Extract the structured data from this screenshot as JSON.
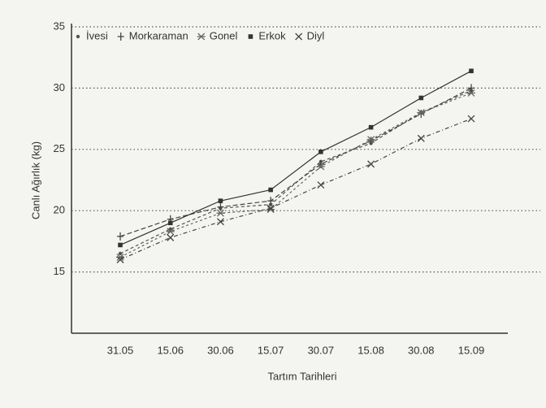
{
  "chart_data": {
    "type": "line",
    "y_label": "Canlı Ağırlık (kg)",
    "x_label": "Tartım Tarihleri",
    "categories": [
      "31.05",
      "15.06",
      "30.06",
      "15.07",
      "30.07",
      "15.08",
      "30.08",
      "15.09"
    ],
    "series": [
      {
        "name": "İvesi",
        "color": "#555555",
        "marker": "dot",
        "values": [
          16.5,
          18.5,
          20.2,
          20.5,
          24.0,
          25.5,
          28.0,
          29.8
        ]
      },
      {
        "name": "Morkaraman",
        "color": "#444444",
        "marker": "plus",
        "values": [
          17.9,
          19.3,
          20.3,
          20.8,
          23.8,
          25.7,
          27.9,
          30.0
        ]
      },
      {
        "name": "Gonel",
        "color": "#666666",
        "marker": "star",
        "values": [
          16.2,
          18.3,
          19.8,
          20.1,
          23.6,
          25.8,
          28.0,
          29.6
        ]
      },
      {
        "name": "Erkok",
        "color": "#333333",
        "marker": "square",
        "values": [
          17.2,
          19.0,
          20.8,
          21.7,
          24.8,
          26.8,
          29.2,
          31.4
        ]
      },
      {
        "name": "Diyl",
        "color": "#444444",
        "marker": "x",
        "values": [
          16.0,
          17.8,
          19.1,
          20.2,
          22.1,
          23.8,
          25.9,
          27.5
        ]
      }
    ],
    "ylim": [
      10,
      35
    ],
    "yticks": [
      15,
      20,
      25,
      30,
      35
    ],
    "grid": true,
    "legend": "top"
  }
}
